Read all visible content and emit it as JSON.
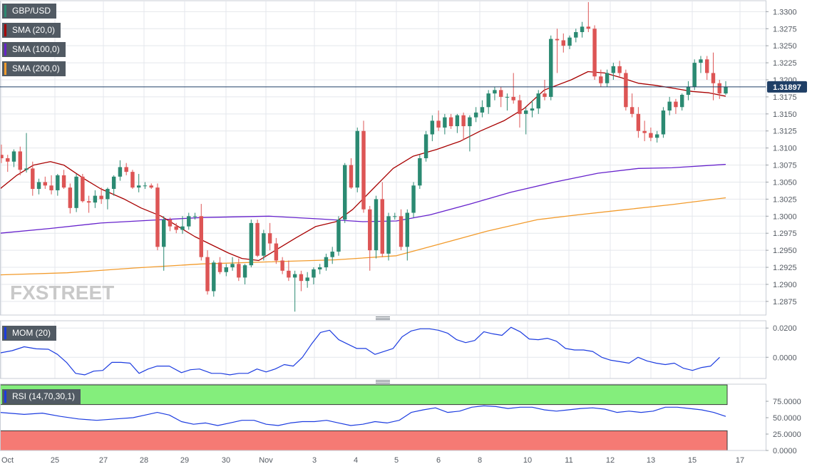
{
  "chart_data": {
    "type": "candlestick",
    "symbol": "GBP/USD",
    "last_price": "1.31897",
    "watermark": "FXSTREET",
    "indicator_labels": {
      "sma20": "SMA (20,0)",
      "sma100": "SMA (100,0)",
      "sma200": "SMA (200,0)",
      "mom": "MOM (20)",
      "rsi": "RSI (14,70,30,1)"
    },
    "x_ticks": [
      "Oct",
      "25",
      "27",
      "28",
      "29",
      "30",
      "Nov",
      "3",
      "4",
      "5",
      "6",
      "8",
      "10",
      "11",
      "12",
      "13",
      "15",
      "17"
    ],
    "price_axis": {
      "ylim": [
        1.2855,
        1.3315
      ],
      "ticks": [
        "1.3300",
        "1.3275",
        "1.3250",
        "1.3225",
        "1.3200",
        "1.3175",
        "1.3150",
        "1.3125",
        "1.3100",
        "1.3075",
        "1.3050",
        "1.3025",
        "1.3000",
        "1.2975",
        "1.2950",
        "1.2925",
        "1.2900",
        "1.2875"
      ]
    },
    "mom_axis": {
      "ylim": [
        -0.0145,
        0.0245
      ],
      "ticks": [
        "0.0200",
        "0.0000"
      ]
    },
    "rsi_axis": {
      "ylim": [
        0,
        100
      ],
      "ticks": [
        "75.0000",
        "50.0000",
        "25.0000",
        "0.0000"
      ],
      "overbought": 70,
      "oversold": 30
    },
    "candles": [
      [
        1.309,
        1.3105,
        1.3078,
        1.3085
      ],
      [
        1.3085,
        1.309,
        1.3065,
        1.308
      ],
      [
        1.308,
        1.3098,
        1.3072,
        1.3095
      ],
      [
        1.3095,
        1.3102,
        1.306,
        1.3068
      ],
      [
        1.3068,
        1.3122,
        1.3064,
        1.307
      ],
      [
        1.307,
        1.308,
        1.303,
        1.304
      ],
      [
        1.304,
        1.3055,
        1.3032,
        1.305
      ],
      [
        1.305,
        1.3058,
        1.304,
        1.3045
      ],
      [
        1.3045,
        1.306,
        1.3032,
        1.3038
      ],
      [
        1.3038,
        1.3062,
        1.303,
        1.306
      ],
      [
        1.306,
        1.3068,
        1.304,
        1.3042
      ],
      [
        1.3042,
        1.3048,
        1.3004,
        1.3012
      ],
      [
        1.3012,
        1.3062,
        1.3006,
        1.3058
      ],
      [
        1.3058,
        1.3062,
        1.302,
        1.3022
      ],
      [
        1.3022,
        1.303,
        1.3005,
        1.302
      ],
      [
        1.302,
        1.3038,
        1.3012,
        1.303
      ],
      [
        1.303,
        1.3042,
        1.3018,
        1.3025
      ],
      [
        1.3025,
        1.3042,
        1.301,
        1.304
      ],
      [
        1.304,
        1.306,
        1.303,
        1.3058
      ],
      [
        1.3058,
        1.3082,
        1.3052,
        1.3072
      ],
      [
        1.3072,
        1.3078,
        1.306,
        1.3065
      ],
      [
        1.3065,
        1.3068,
        1.304,
        1.3042
      ],
      [
        1.3042,
        1.3062,
        1.3035,
        1.3045
      ],
      [
        1.3045,
        1.305,
        1.304,
        1.3045
      ],
      [
        1.3045,
        1.3048,
        1.304,
        1.3042
      ],
      [
        1.3042,
        1.3048,
        1.295,
        1.2955
      ],
      [
        1.2955,
        1.3,
        1.292,
        1.2995
      ],
      [
        1.2995,
        1.2998,
        1.2978,
        1.2985
      ],
      [
        1.2985,
        1.299,
        1.2975,
        1.298
      ],
      [
        1.298,
        1.3,
        1.2974,
        1.2985
      ],
      [
        1.2985,
        1.3005,
        1.298,
        1.3
      ],
      [
        1.3,
        1.3005,
        1.2995,
        1.3
      ],
      [
        1.3,
        1.3018,
        1.2935,
        1.294
      ],
      [
        1.294,
        1.295,
        1.2885,
        1.289
      ],
      [
        1.289,
        1.2935,
        1.2882,
        1.2932
      ],
      [
        1.2932,
        1.294,
        1.2915,
        1.2918
      ],
      [
        1.2918,
        1.293,
        1.2912,
        1.2925
      ],
      [
        1.2925,
        1.294,
        1.292,
        1.293
      ],
      [
        1.293,
        1.2938,
        1.2905,
        1.291
      ],
      [
        1.291,
        1.293,
        1.29,
        1.2928
      ],
      [
        1.2928,
        1.2995,
        1.2925,
        1.299
      ],
      [
        1.299,
        1.2995,
        1.294,
        1.2942
      ],
      [
        1.2942,
        1.298,
        1.2935,
        1.2975
      ],
      [
        1.2975,
        1.299,
        1.295,
        1.296
      ],
      [
        1.296,
        1.2968,
        1.293,
        1.2935
      ],
      [
        1.2935,
        1.294,
        1.2915,
        1.292
      ],
      [
        1.292,
        1.2935,
        1.2905,
        1.291
      ],
      [
        1.291,
        1.292,
        1.286,
        1.2915
      ],
      [
        1.2915,
        1.292,
        1.289,
        1.2905
      ],
      [
        1.2905,
        1.2918,
        1.2895,
        1.291
      ],
      [
        1.291,
        1.2925,
        1.29,
        1.2922
      ],
      [
        1.2922,
        1.293,
        1.2915,
        1.2925
      ],
      [
        1.2925,
        1.2945,
        1.292,
        1.294
      ],
      [
        1.294,
        1.2955,
        1.293,
        1.2948
      ],
      [
        1.2948,
        1.3,
        1.2942,
        1.2995
      ],
      [
        1.2995,
        1.3078,
        1.299,
        1.3075
      ],
      [
        1.3075,
        1.3085,
        1.304,
        1.3042
      ],
      [
        1.3042,
        1.313,
        1.3035,
        1.3125
      ],
      [
        1.3125,
        1.314,
        1.3005,
        1.301
      ],
      [
        1.301,
        1.3015,
        1.292,
        1.295
      ],
      [
        1.295,
        1.303,
        1.2938,
        1.3025
      ],
      [
        1.3025,
        1.305,
        1.294,
        1.2945
      ],
      [
        1.2945,
        1.3005,
        1.2935,
        1.3
      ],
      [
        1.3,
        1.3005,
        1.2995,
        1.3
      ],
      [
        1.3,
        1.301,
        1.295,
        1.2955
      ],
      [
        1.2955,
        1.301,
        1.2935,
        1.3005
      ],
      [
        1.3005,
        1.305,
        1.2998,
        1.3045
      ],
      [
        1.3045,
        1.309,
        1.304,
        1.3085
      ],
      [
        1.3085,
        1.3125,
        1.308,
        1.312
      ],
      [
        1.312,
        1.3148,
        1.311,
        1.314
      ],
      [
        1.314,
        1.3155,
        1.3125,
        1.313
      ],
      [
        1.313,
        1.315,
        1.312,
        1.3145
      ],
      [
        1.3145,
        1.315,
        1.3128,
        1.3132
      ],
      [
        1.3132,
        1.315,
        1.3122,
        1.3148
      ],
      [
        1.3148,
        1.3152,
        1.3112,
        1.3132
      ],
      [
        1.3132,
        1.3148,
        1.3095,
        1.3145
      ],
      [
        1.3145,
        1.316,
        1.3138,
        1.3152
      ],
      [
        1.3152,
        1.317,
        1.3145,
        1.316
      ],
      [
        1.316,
        1.3185,
        1.315,
        1.318
      ],
      [
        1.318,
        1.319,
        1.317,
        1.3185
      ],
      [
        1.3185,
        1.319,
        1.316,
        1.3175
      ],
      [
        1.3175,
        1.318,
        1.3155,
        1.3175
      ],
      [
        1.3175,
        1.321,
        1.3165,
        1.317
      ],
      [
        1.317,
        1.3178,
        1.313,
        1.315
      ],
      [
        1.315,
        1.316,
        1.312,
        1.3155
      ],
      [
        1.3155,
        1.317,
        1.3145,
        1.3158
      ],
      [
        1.3158,
        1.3185,
        1.315,
        1.318
      ],
      [
        1.318,
        1.32,
        1.317,
        1.3175
      ],
      [
        1.3175,
        1.3265,
        1.317,
        1.326
      ],
      [
        1.326,
        1.3275,
        1.321,
        1.3258
      ],
      [
        1.3258,
        1.3268,
        1.324,
        1.325
      ],
      [
        1.325,
        1.3265,
        1.3245,
        1.3262
      ],
      [
        1.3262,
        1.3275,
        1.3255,
        1.327
      ],
      [
        1.327,
        1.3285,
        1.3262,
        1.3278
      ],
      [
        1.3278,
        1.3314,
        1.327,
        1.3275
      ],
      [
        1.3275,
        1.328,
        1.32,
        1.3205
      ],
      [
        1.3205,
        1.3215,
        1.319,
        1.3195
      ],
      [
        1.3195,
        1.3215,
        1.319,
        1.321
      ],
      [
        1.321,
        1.3225,
        1.32,
        1.322
      ],
      [
        1.322,
        1.3228,
        1.3205,
        1.321
      ],
      [
        1.321,
        1.3215,
        1.3155,
        1.316
      ],
      [
        1.316,
        1.318,
        1.3145,
        1.315
      ],
      [
        1.315,
        1.316,
        1.3115,
        1.3125
      ],
      [
        1.3125,
        1.314,
        1.311,
        1.3122
      ],
      [
        1.3122,
        1.313,
        1.311,
        1.3115
      ],
      [
        1.3115,
        1.3125,
        1.3108,
        1.312
      ],
      [
        1.312,
        1.316,
        1.3115,
        1.3155
      ],
      [
        1.3155,
        1.3175,
        1.3148,
        1.3168
      ],
      [
        1.3168,
        1.3172,
        1.315,
        1.316
      ],
      [
        1.316,
        1.318,
        1.3155,
        1.3178
      ],
      [
        1.3178,
        1.3198,
        1.317,
        1.319
      ],
      [
        1.319,
        1.323,
        1.3185,
        1.3225
      ],
      [
        1.3225,
        1.3235,
        1.321,
        1.323
      ],
      [
        1.323,
        1.3235,
        1.32,
        1.321
      ],
      [
        1.321,
        1.324,
        1.317,
        1.3195
      ],
      [
        1.3195,
        1.32,
        1.3172,
        1.318
      ],
      [
        1.318,
        1.3198,
        1.3178,
        1.319
      ]
    ],
    "sma20": [
      [
        0,
        1.304
      ],
      [
        5,
        1.306
      ],
      [
        10,
        1.3075
      ],
      [
        15,
        1.308
      ],
      [
        19,
        1.3075
      ],
      [
        25,
        1.3055
      ],
      [
        30,
        1.304
      ],
      [
        37,
        1.3025
      ],
      [
        42,
        1.3012
      ],
      [
        48,
        1.3
      ],
      [
        53,
        1.2985
      ],
      [
        58,
        1.297
      ],
      [
        63,
        1.2958
      ],
      [
        68,
        1.2946
      ],
      [
        72,
        1.2938
      ],
      [
        77,
        1.2935
      ],
      [
        82,
        1.295
      ],
      [
        88,
        1.2968
      ],
      [
        94,
        1.2985
      ],
      [
        100,
        1.2992
      ],
      [
        105,
        1.301
      ],
      [
        111,
        1.304
      ],
      [
        117,
        1.307
      ],
      [
        123,
        1.3088
      ],
      [
        130,
        1.3098
      ],
      [
        137,
        1.311
      ],
      [
        143,
        1.3125
      ],
      [
        150,
        1.314
      ],
      [
        156,
        1.3158
      ],
      [
        162,
        1.3185
      ],
      [
        170,
        1.32
      ],
      [
        175,
        1.3212
      ],
      [
        180,
        1.321
      ],
      [
        185,
        1.3203
      ],
      [
        190,
        1.3195
      ],
      [
        195,
        1.3192
      ],
      [
        200,
        1.3188
      ],
      [
        206,
        1.3183
      ],
      [
        211,
        1.3181
      ],
      [
        216,
        1.3176
      ]
    ],
    "sma100": [
      [
        0,
        1.2975
      ],
      [
        15,
        1.2982
      ],
      [
        30,
        1.299
      ],
      [
        45,
        1.2994
      ],
      [
        60,
        1.2998
      ],
      [
        80,
        1.3
      ],
      [
        95,
        1.2996
      ],
      [
        108,
        1.2992
      ],
      [
        118,
        1.2993
      ],
      [
        128,
        1.3002
      ],
      [
        140,
        1.3018
      ],
      [
        152,
        1.3035
      ],
      [
        165,
        1.305
      ],
      [
        178,
        1.3063
      ],
      [
        190,
        1.307
      ],
      [
        200,
        1.3071
      ],
      [
        216,
        1.3076
      ]
    ],
    "sma200": [
      [
        0,
        1.2914
      ],
      [
        20,
        1.2917
      ],
      [
        40,
        1.2924
      ],
      [
        60,
        1.293
      ],
      [
        80,
        1.2933
      ],
      [
        100,
        1.2936
      ],
      [
        118,
        1.2942
      ],
      [
        130,
        1.2958
      ],
      [
        145,
        1.2978
      ],
      [
        160,
        1.2995
      ],
      [
        172,
        1.3002
      ],
      [
        185,
        1.3009
      ],
      [
        200,
        1.3017
      ],
      [
        216,
        1.3027
      ]
    ],
    "momentum": [
      [
        0,
        0.003
      ],
      [
        4,
        0.0045
      ],
      [
        8,
        0.0072
      ],
      [
        12,
        0.0058
      ],
      [
        16,
        0.0055
      ],
      [
        19,
        0.002
      ],
      [
        22,
        -0.0035
      ],
      [
        25,
        -0.011
      ],
      [
        28,
        -0.012
      ],
      [
        31,
        -0.0095
      ],
      [
        34,
        -0.009
      ],
      [
        37,
        -0.0035
      ],
      [
        40,
        -0.0035
      ],
      [
        43,
        -0.004
      ],
      [
        46,
        -0.011
      ],
      [
        49,
        -0.008
      ],
      [
        52,
        -0.006
      ],
      [
        56,
        -0.006
      ],
      [
        60,
        -0.0105
      ],
      [
        63,
        -0.0085
      ],
      [
        66,
        -0.008
      ],
      [
        70,
        -0.011
      ],
      [
        73,
        -0.011
      ],
      [
        76,
        -0.012
      ],
      [
        79,
        -0.011
      ],
      [
        82,
        -0.011
      ],
      [
        85,
        -0.008
      ],
      [
        88,
        -0.01
      ],
      [
        91,
        -0.008
      ],
      [
        94,
        -0.005
      ],
      [
        97,
        -0.006
      ],
      [
        100,
        0.0
      ],
      [
        103,
        0.009
      ],
      [
        106,
        0.017
      ],
      [
        109,
        0.0185
      ],
      [
        112,
        0.012
      ],
      [
        115,
        0.009
      ],
      [
        118,
        0.006
      ],
      [
        121,
        0.006
      ],
      [
        124,
        0.002
      ],
      [
        127,
        0.004
      ],
      [
        130,
        0.006
      ],
      [
        133,
        0.014
      ],
      [
        136,
        0.018
      ],
      [
        139,
        0.0195
      ],
      [
        142,
        0.0195
      ],
      [
        145,
        0.0185
      ],
      [
        148,
        0.0165
      ],
      [
        151,
        0.012
      ],
      [
        154,
        0.01
      ],
      [
        157,
        0.0115
      ],
      [
        160,
        0.0175
      ],
      [
        163,
        0.016
      ],
      [
        166,
        0.015
      ],
      [
        169,
        0.0205
      ],
      [
        172,
        0.0175
      ],
      [
        175,
        0.0125
      ],
      [
        178,
        0.012
      ],
      [
        181,
        0.013
      ],
      [
        184,
        0.011
      ],
      [
        187,
        0.006
      ],
      [
        190,
        0.005
      ],
      [
        193,
        0.005
      ],
      [
        196,
        0.004
      ],
      [
        199,
        0.0
      ],
      [
        202,
        -0.002
      ],
      [
        205,
        -0.003
      ],
      [
        208,
        -0.004
      ],
      [
        211,
        0.0
      ],
      [
        214,
        -0.0025
      ],
      [
        217,
        -0.004
      ],
      [
        220,
        -0.005
      ],
      [
        223,
        -0.004
      ],
      [
        226,
        -0.0075
      ],
      [
        229,
        -0.009
      ],
      [
        232,
        -0.007
      ],
      [
        235,
        -0.006
      ],
      [
        238,
        0.0
      ]
    ],
    "rsi": [
      [
        0,
        58
      ],
      [
        8,
        55
      ],
      [
        14,
        57
      ],
      [
        20,
        52
      ],
      [
        26,
        48
      ],
      [
        32,
        46
      ],
      [
        38,
        48
      ],
      [
        44,
        50
      ],
      [
        48,
        54
      ],
      [
        52,
        58
      ],
      [
        56,
        54
      ],
      [
        60,
        44
      ],
      [
        64,
        40
      ],
      [
        68,
        42
      ],
      [
        72,
        38
      ],
      [
        76,
        42
      ],
      [
        80,
        46
      ],
      [
        84,
        46
      ],
      [
        88,
        40
      ],
      [
        92,
        38
      ],
      [
        96,
        42
      ],
      [
        100,
        44
      ],
      [
        104,
        44
      ],
      [
        108,
        46
      ],
      [
        112,
        42
      ],
      [
        116,
        38
      ],
      [
        120,
        40
      ],
      [
        124,
        44
      ],
      [
        128,
        42
      ],
      [
        132,
        46
      ],
      [
        136,
        58
      ],
      [
        140,
        62
      ],
      [
        144,
        65
      ],
      [
        148,
        58
      ],
      [
        152,
        60
      ],
      [
        156,
        66
      ],
      [
        160,
        68
      ],
      [
        164,
        67
      ],
      [
        168,
        64
      ],
      [
        172,
        66
      ],
      [
        176,
        66
      ],
      [
        180,
        62
      ],
      [
        184,
        60
      ],
      [
        188,
        62
      ],
      [
        192,
        64
      ],
      [
        196,
        65
      ],
      [
        200,
        63
      ],
      [
        204,
        58
      ],
      [
        208,
        60
      ],
      [
        212,
        58
      ],
      [
        216,
        60
      ],
      [
        220,
        66
      ],
      [
        224,
        66
      ],
      [
        228,
        64
      ],
      [
        232,
        62
      ],
      [
        236,
        58
      ],
      [
        240,
        52
      ]
    ]
  },
  "colors": {
    "up": "#2b8a72",
    "down": "#dd5555",
    "sma20": "#a80000",
    "sma100": "#6622cc",
    "sma200": "#f29b2c",
    "momentum": "#1c3ce0",
    "rsi": "#1c3ce0",
    "rsi_overbought_band": "#84ee7c",
    "rsi_oversold_band": "#f57a74",
    "price_line": "#1f3f66",
    "label_bg": "#515a63",
    "watermark": "#c9c9c9",
    "grid": "#e4e7ec"
  }
}
